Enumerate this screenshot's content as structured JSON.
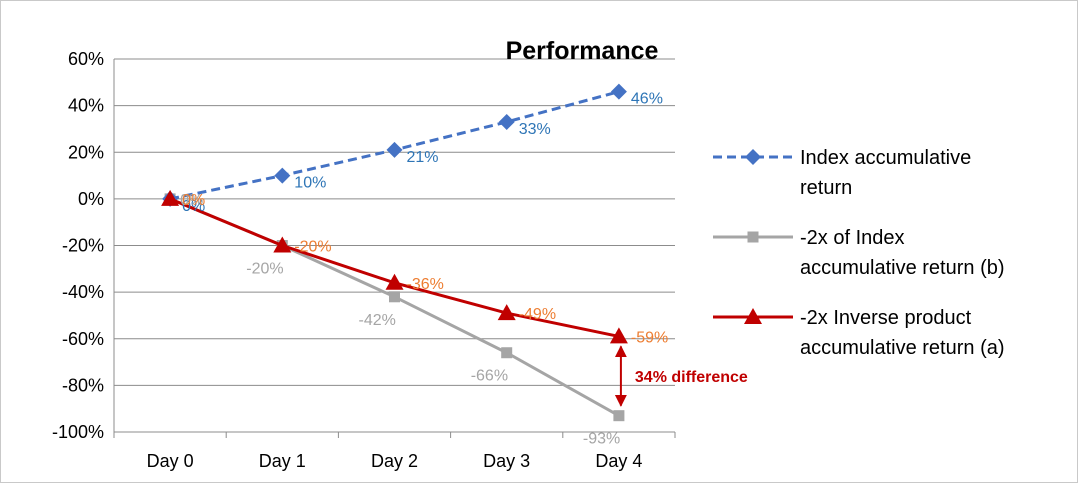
{
  "chart_data": {
    "type": "line",
    "title": "Performance",
    "categories": [
      "Day 0",
      "Day 1",
      "Day 2",
      "Day 3",
      "Day 4"
    ],
    "ylim": [
      -100,
      60
    ],
    "yticks": [
      "60%",
      "40%",
      "20%",
      "0%",
      "-20%",
      "-40%",
      "-60%",
      "-80%",
      "-100%"
    ],
    "ytick_values": [
      60,
      40,
      20,
      0,
      -20,
      -40,
      -60,
      -80,
      -100
    ],
    "grid": true,
    "legend_position": "right",
    "series": [
      {
        "name": "Index accumulative return",
        "legend_lines": [
          "Index accumulative",
          "return"
        ],
        "values": [
          0,
          10,
          21,
          33,
          46
        ],
        "labels": [
          "0%",
          "10%",
          "21%",
          "33%",
          "46%"
        ],
        "color": "#4472C4",
        "label_color": "#2E75B6",
        "dash": true,
        "marker": "diamond"
      },
      {
        "name": "-2x of Index accumulative return (b)",
        "legend_lines": [
          "-2x of Index",
          "accumulative return (b)"
        ],
        "values": [
          0,
          -20,
          -42,
          -66,
          -93
        ],
        "labels": [
          "0%",
          "-20%",
          "-42%",
          "-66%",
          "-93%"
        ],
        "color": "#A5A5A5",
        "label_color": "#A5A5A5",
        "dash": false,
        "marker": "square"
      },
      {
        "name": "-2x Inverse product accumulative return (a)",
        "legend_lines": [
          "-2x Inverse product",
          "accumulative return (a)"
        ],
        "values": [
          0,
          -20,
          -36,
          -49,
          -59
        ],
        "labels": [
          "0%",
          "-20%",
          "-36%",
          "-49%",
          "-59%"
        ],
        "color": "#C00000",
        "label_color": "#ED7D31",
        "dash": false,
        "marker": "triangle"
      }
    ],
    "annotation": {
      "text": "34% difference",
      "color": "#C00000",
      "category": "Day 4",
      "from": -59,
      "to": -93
    }
  }
}
